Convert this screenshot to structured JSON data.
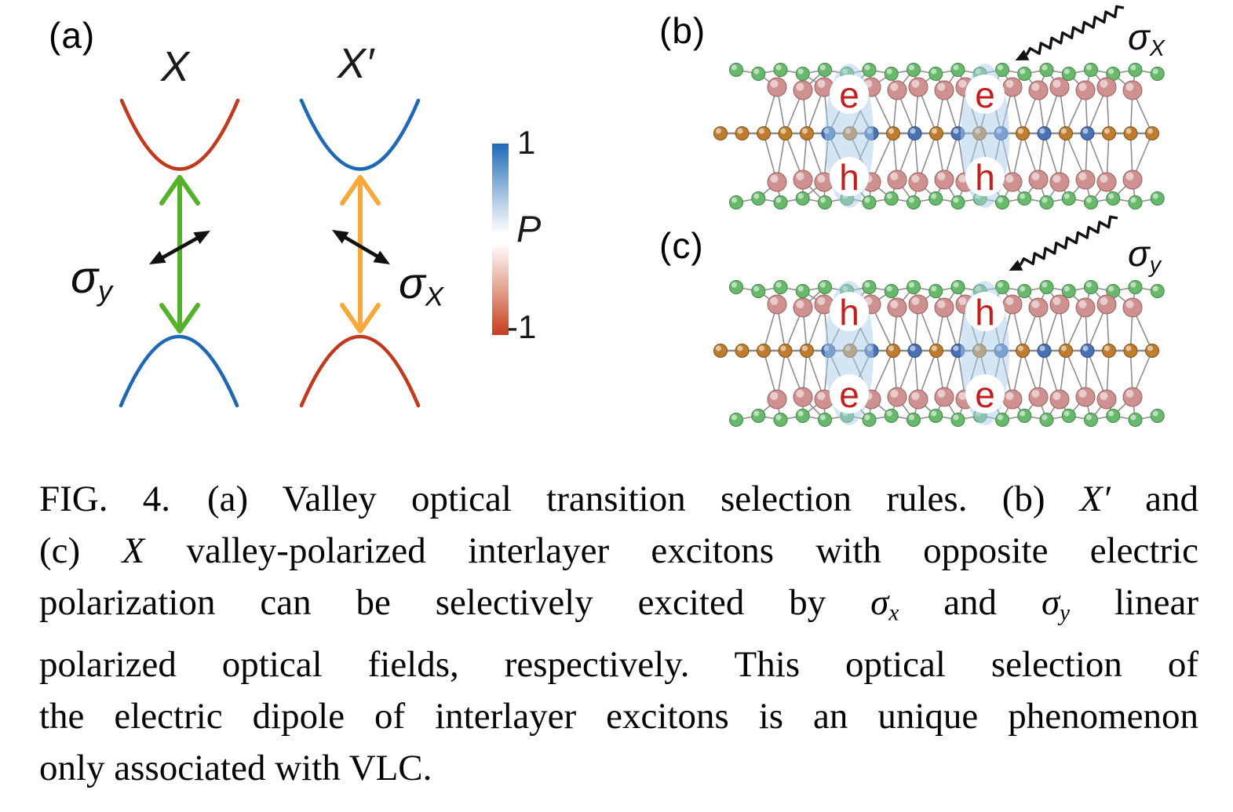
{
  "figure": {
    "panel_a": {
      "label": "(a)",
      "valleys": [
        {
          "title": "X",
          "polarization": {
            "base": "σ",
            "sub": "y"
          }
        },
        {
          "title": "X′",
          "polarization": {
            "base": "σ",
            "sub": "X"
          }
        }
      ],
      "colorbar": {
        "top_tick": "1",
        "axis_label": "P",
        "bottom_tick": "-1"
      }
    },
    "panel_b": {
      "label": "(b)",
      "photon_label": {
        "base": "σ",
        "sub": "X"
      },
      "exciton_top": "e",
      "exciton_bottom": "h"
    },
    "panel_c": {
      "label": "(c)",
      "photon_label": {
        "base": "σ",
        "sub": "y"
      },
      "exciton_top": "h",
      "exciton_bottom": "e"
    },
    "colors": {
      "band_red": "#c23a1d",
      "band_blue": "#1e68b6",
      "arrow_green": "#54b22a",
      "arrow_orange": "#f9a93c",
      "black": "#111111",
      "exciton_label_red": "#c41f1f",
      "exciton_halo": "#a9cdeb",
      "bond": "#8d8d8d",
      "colorbar_top": "#1d6ab8",
      "colorbar_mid": "#ffffff",
      "colorbar_bottom": "#c63d1d",
      "atom_green": "#68b96b",
      "atom_green_edge": "#3f8746",
      "atom_pink": "#cf9090",
      "atom_pink_edge": "#9b6060",
      "atom_orange": "#c07c2e",
      "atom_orange_edge": "#7d5015",
      "atom_blue": "#4a71b4",
      "atom_blue_edge": "#2b4b80"
    },
    "caption": {
      "lines": [
        {
          "justify": true,
          "runs": [
            {
              "t": "FIG. 4.  (a) Valley optical transition selection rules. (b) ",
              "s": "n"
            },
            {
              "t": "X′",
              "s": "i"
            },
            {
              "t": " and",
              "s": "n"
            }
          ]
        },
        {
          "justify": true,
          "runs": [
            {
              "t": "(c) ",
              "s": "n"
            },
            {
              "t": "X",
              "s": "i"
            },
            {
              "t": " valley-polarized interlayer excitons with opposite electric",
              "s": "n"
            }
          ]
        },
        {
          "justify": true,
          "runs": [
            {
              "t": "polarization can be selectively excited by ",
              "s": "n"
            },
            {
              "t": "σ",
              "s": "i"
            },
            {
              "t": "x",
              "s": "sub"
            },
            {
              "t": " and ",
              "s": "n"
            },
            {
              "t": "σ",
              "s": "i"
            },
            {
              "t": "y",
              "s": "sub"
            },
            {
              "t": " linear",
              "s": "n"
            }
          ]
        },
        {
          "justify": true,
          "runs": [
            {
              "t": "polarized optical fields, respectively. This optical selection of",
              "s": "n"
            }
          ]
        },
        {
          "justify": true,
          "runs": [
            {
              "t": "the electric dipole of interlayer excitons is an unique phenomenon",
              "s": "n"
            }
          ]
        },
        {
          "justify": false,
          "runs": [
            {
              "t": "only associated with VLC.",
              "s": "n"
            }
          ]
        }
      ]
    }
  }
}
